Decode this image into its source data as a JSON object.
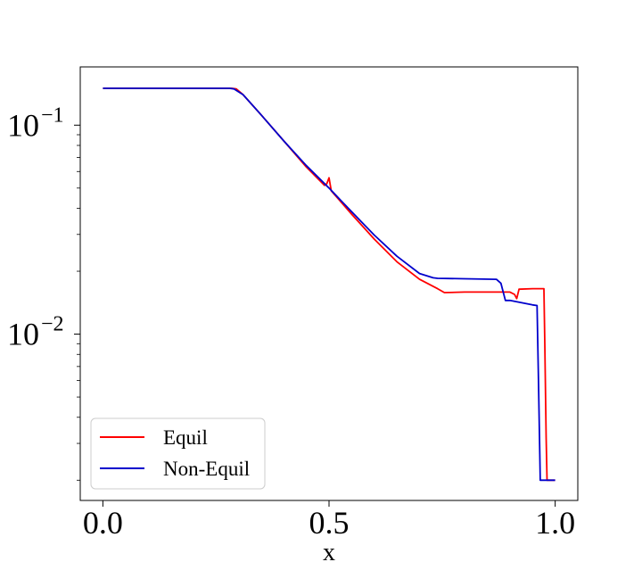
{
  "chart_data": {
    "type": "line",
    "title": "",
    "xlabel": "x",
    "ylabel": "",
    "xlim": [
      -0.05,
      1.05
    ],
    "ylim": [
      0.0016,
      0.19
    ],
    "yscale": "log",
    "grid": false,
    "legend_position": "lower-left",
    "x_ticks": [
      {
        "value": 0.0,
        "label": "0.0"
      },
      {
        "value": 0.5,
        "label": "0.5"
      },
      {
        "value": 1.0,
        "label": "1.0"
      }
    ],
    "y_ticks": [
      {
        "value": 0.1,
        "base": "10",
        "exponent": "−1"
      },
      {
        "value": 0.01,
        "base": "10",
        "exponent": "−2"
      }
    ],
    "series": [
      {
        "name": "Equil",
        "color": "#ff0000",
        "x": [
          0.0,
          0.285,
          0.295,
          0.31,
          0.35,
          0.4,
          0.45,
          0.49,
          0.495,
          0.5,
          0.505,
          0.55,
          0.6,
          0.65,
          0.7,
          0.74,
          0.755,
          0.8,
          0.85,
          0.9,
          0.91,
          0.915,
          0.92,
          0.95,
          0.975,
          0.977,
          0.98,
          0.982,
          1.0
        ],
        "y": [
          0.15,
          0.15,
          0.149,
          0.14,
          0.112,
          0.084,
          0.063,
          0.0515,
          0.0525,
          0.056,
          0.0485,
          0.0375,
          0.0285,
          0.0222,
          0.0183,
          0.0165,
          0.0158,
          0.0159,
          0.0159,
          0.0159,
          0.0155,
          0.0148,
          0.0164,
          0.0165,
          0.0165,
          0.009,
          0.0032,
          0.002,
          0.002
        ]
      },
      {
        "name": "Non-Equil",
        "color": "#0000cc",
        "x": [
          0.0,
          0.28,
          0.29,
          0.31,
          0.35,
          0.4,
          0.45,
          0.5,
          0.55,
          0.6,
          0.65,
          0.7,
          0.73,
          0.74,
          0.8,
          0.87,
          0.88,
          0.89,
          0.9,
          0.95,
          0.96,
          0.963,
          0.967,
          1.0
        ],
        "y": [
          0.15,
          0.15,
          0.149,
          0.14,
          0.112,
          0.084,
          0.064,
          0.05,
          0.0385,
          0.0298,
          0.0236,
          0.0195,
          0.0186,
          0.0185,
          0.0184,
          0.0183,
          0.0175,
          0.0145,
          0.0145,
          0.0138,
          0.0137,
          0.006,
          0.002,
          0.002
        ]
      }
    ]
  }
}
